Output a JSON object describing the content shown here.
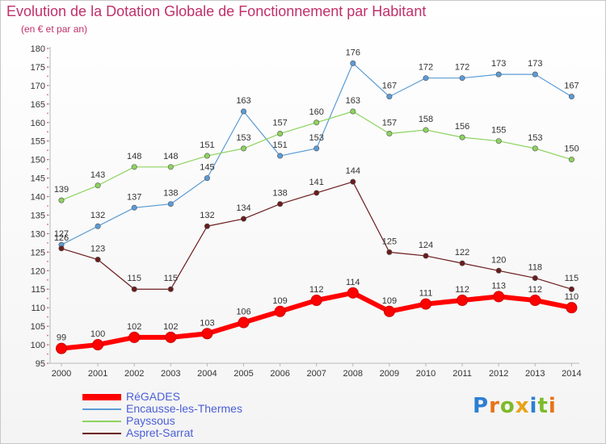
{
  "chart_data": {
    "type": "line",
    "title": "Evolution de la Dotation Globale de Fonctionnement par Habitant",
    "subtitle": "(en € et par an)",
    "x": [
      "2000",
      "2001",
      "2002",
      "2003",
      "2004",
      "2005",
      "2006",
      "2007",
      "2008",
      "2009",
      "2010",
      "2011",
      "2012",
      "2013",
      "2014"
    ],
    "ylim": [
      95,
      180
    ],
    "yticks": [
      95,
      100,
      105,
      110,
      115,
      120,
      125,
      130,
      135,
      140,
      145,
      150,
      155,
      160,
      165,
      170,
      175,
      180
    ],
    "grid": false,
    "legend_position": "bottom-left",
    "series": [
      {
        "name": "RéGADES",
        "color": "#ff0000",
        "values": [
          99,
          100,
          102,
          102,
          103,
          106,
          109,
          112,
          114,
          109,
          111,
          112,
          113,
          112,
          110
        ]
      },
      {
        "name": "Encausse-les-Thermes",
        "color": "#5b9bd5",
        "values": [
          127,
          132,
          137,
          138,
          145,
          163,
          151,
          153,
          176,
          167,
          172,
          172,
          173,
          173,
          167
        ]
      },
      {
        "name": "Payssous",
        "color": "#8dd35f",
        "values": [
          139,
          143,
          148,
          148,
          151,
          153,
          157,
          160,
          163,
          157,
          158,
          156,
          155,
          153,
          150
        ]
      },
      {
        "name": "Aspret-Sarrat",
        "color": "#6b1c1c",
        "values": [
          126,
          123,
          115,
          115,
          132,
          134,
          138,
          141,
          144,
          125,
          124,
          122,
          120,
          118,
          115
        ]
      }
    ]
  },
  "logo": {
    "letters": [
      "P",
      "r",
      "o",
      "x",
      "i",
      "t",
      "i"
    ],
    "colors": [
      "#2d7fd3",
      "#e8731a",
      "#7dbb2a",
      "#e8a31a",
      "#2d7fd3",
      "#7dbb2a",
      "#e8731a"
    ]
  }
}
